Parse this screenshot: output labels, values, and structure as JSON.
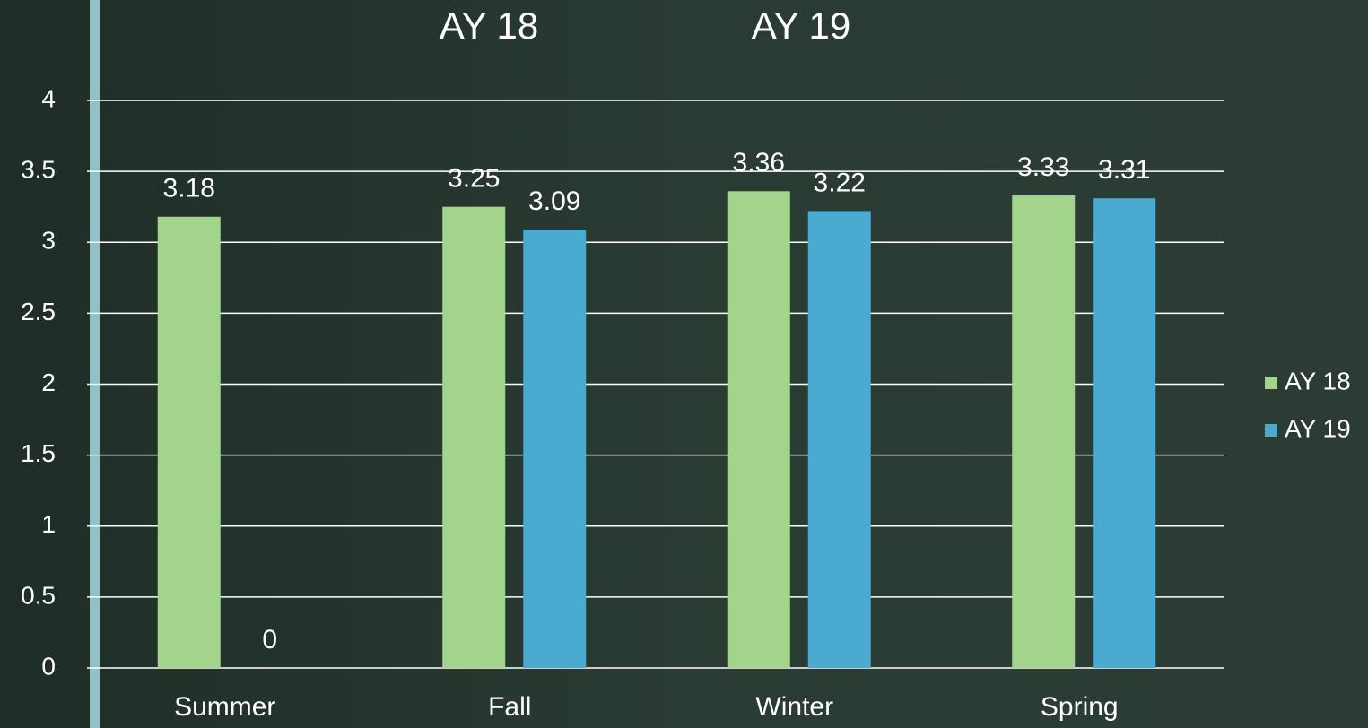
{
  "chart_data": {
    "type": "bar",
    "categories": [
      "Summer",
      "Fall",
      "Winter",
      "Spring"
    ],
    "series": [
      {
        "name": "AY 18",
        "color": "#a2d58b",
        "values": [
          3.18,
          3.25,
          3.36,
          3.33
        ]
      },
      {
        "name": "AY 19",
        "color": "#4aaacf",
        "values": [
          0,
          3.09,
          3.22,
          3.31
        ]
      }
    ],
    "ylim": [
      0,
      4
    ],
    "yticks": [
      0,
      0.5,
      1,
      1.5,
      2,
      2.5,
      3,
      3.5,
      4
    ],
    "grid": true,
    "legend": "right"
  }
}
